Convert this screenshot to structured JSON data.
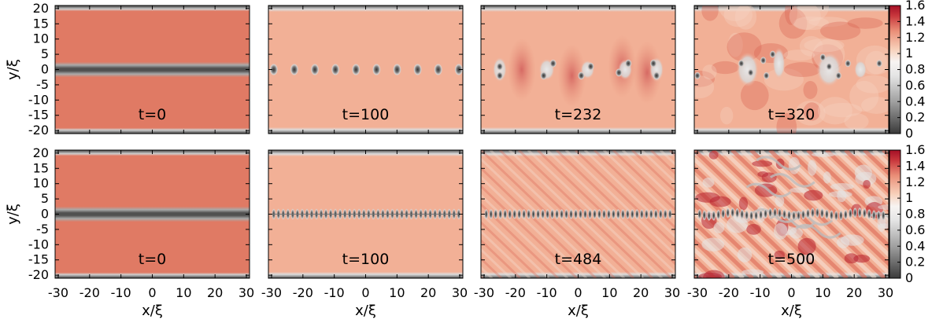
{
  "chart_data": {
    "type": "heatmap",
    "xlabel": "x/ξ",
    "ylabel": "y/ξ",
    "xlim": [
      -31,
      31
    ],
    "ylim": [
      -21,
      21
    ],
    "x_ticks": [
      "-30",
      "-20",
      "-10",
      "0",
      "10",
      "20",
      "30"
    ],
    "x_tick_values": [
      -30,
      -20,
      -10,
      0,
      10,
      20,
      30
    ],
    "y_ticks": [
      "20",
      "15",
      "10",
      "5",
      "0",
      "-5",
      "-10",
      "-15",
      "-20"
    ],
    "y_tick_values": [
      20,
      15,
      10,
      5,
      0,
      -5,
      -10,
      -15,
      -20
    ],
    "colorbar": {
      "ticks": [
        "1.6",
        "1.4",
        "1.2",
        "1",
        "0.8",
        "0.6",
        "0.4",
        "0.2",
        "0"
      ],
      "tick_values": [
        1.6,
        1.4,
        1.2,
        1.0,
        0.8,
        0.6,
        0.4,
        0.2,
        0.0
      ],
      "range": [
        0,
        1.6
      ],
      "colors": [
        "#3a3a3a",
        "#9a9a9a",
        "#dedede",
        "#f7f4f2",
        "#f7cfb9",
        "#ea8f78",
        "#c8373d",
        "#a50f25"
      ]
    },
    "panels": [
      {
        "row": 0,
        "col": 0,
        "label": "t=0",
        "state": "dark-soliton-stripe"
      },
      {
        "row": 0,
        "col": 1,
        "label": "t=100",
        "state": "vortex-chain",
        "vortex_count": 10
      },
      {
        "row": 0,
        "col": 2,
        "label": "t=232",
        "state": "vortex-clusters"
      },
      {
        "row": 0,
        "col": 3,
        "label": "t=320",
        "state": "turbulent"
      },
      {
        "row": 1,
        "col": 0,
        "label": "t=0",
        "state": "dark-soliton-stripe"
      },
      {
        "row": 1,
        "col": 1,
        "label": "t=100",
        "state": "vortex-chain",
        "vortex_count": 40
      },
      {
        "row": 1,
        "col": 2,
        "label": "t=484",
        "state": "waves"
      },
      {
        "row": 1,
        "col": 3,
        "label": "t=500",
        "state": "turbulent-waves"
      }
    ]
  }
}
